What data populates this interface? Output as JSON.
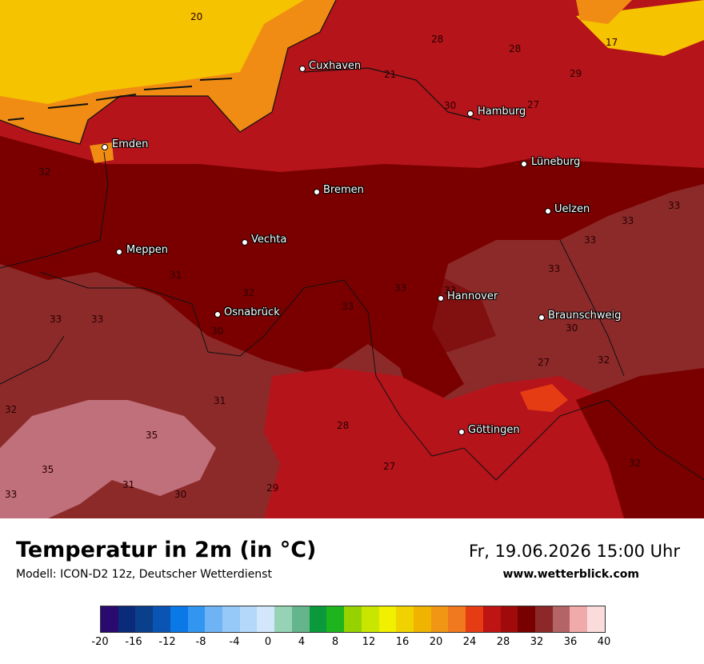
{
  "footer": {
    "title": "Temperatur in 2m (in °C)",
    "model": "Modell: ICON-D2 12z, Deutscher Wetterdienst",
    "datetime": "Fr, 19.06.2026 15:00 Uhr",
    "website": "www.wetterblick.com"
  },
  "cities": [
    {
      "name": "Cuxhaven"
    },
    {
      "name": "Hamburg"
    },
    {
      "name": "Emden"
    },
    {
      "name": "Lüneburg"
    },
    {
      "name": "Bremen"
    },
    {
      "name": "Uelzen"
    },
    {
      "name": "Vechta"
    },
    {
      "name": "Meppen"
    },
    {
      "name": "Hannover"
    },
    {
      "name": "Osnabrück"
    },
    {
      "name": "Braunschweig"
    },
    {
      "name": "Göttingen"
    }
  ],
  "isotherm_labels": [
    "20",
    "17",
    "28",
    "28",
    "21",
    "29",
    "30",
    "27",
    "32",
    "33",
    "33",
    "31",
    "33",
    "33",
    "32",
    "33",
    "33",
    "33",
    "33",
    "30",
    "30",
    "33",
    "32",
    "32",
    "31",
    "35",
    "28",
    "27",
    "35",
    "31",
    "30",
    "29",
    "33",
    "32",
    "27"
  ],
  "legend": {
    "ticks": [
      "-20",
      "-16",
      "-12",
      "-8",
      "-4",
      "0",
      "4",
      "8",
      "12",
      "16",
      "20",
      "24",
      "28",
      "32",
      "36",
      "40"
    ],
    "colors": [
      "#2a0a6e",
      "#0a2a7a",
      "#0a3f8c",
      "#0a55b4",
      "#0a78e6",
      "#3296f0",
      "#6eb4f5",
      "#96c8f8",
      "#b4d8fa",
      "#d2e6fc",
      "#96d2b4",
      "#64b48c",
      "#0a9a3c",
      "#1eb41e",
      "#96d200",
      "#c8e600",
      "#f0f000",
      "#f0d200",
      "#f0b400",
      "#f09614",
      "#f0781e",
      "#e63c14",
      "#be1414",
      "#a00a0a",
      "#780000",
      "#8c2828",
      "#b46464",
      "#f0aaaa",
      "#fadcdc"
    ]
  },
  "colors": {
    "temp_17_20": "#f5c300",
    "temp_21_24": "#f08c14",
    "temp_25_28": "#b4141a",
    "temp_29_32": "#7a0000",
    "temp_33_35": "#8c2a2a",
    "temp_35_plus": "#c0707a"
  }
}
